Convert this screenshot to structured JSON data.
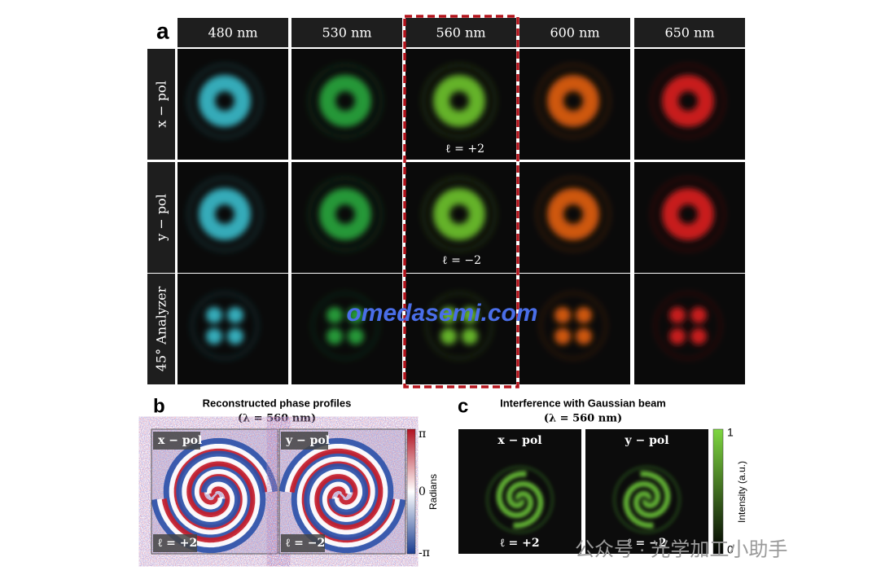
{
  "panel_a": {
    "label": "a",
    "columns": [
      "480 nm",
      "530 nm",
      "560 nm",
      "600 nm",
      "650 nm"
    ],
    "rows": [
      "x − pol",
      "y − pol",
      "45° Analyzer"
    ],
    "annotations": [
      "ℓ = +2",
      "ℓ = −2"
    ]
  },
  "watermark": "omedasemi.com",
  "panel_b": {
    "label": "b",
    "title": "Reconstructed phase profiles",
    "subtitle": "(λ = 560 nm)",
    "images": [
      {
        "label": "x − pol",
        "annotation": "ℓ = +2"
      },
      {
        "label": "y − pol",
        "annotation": "ℓ = −2"
      }
    ],
    "colorbar": {
      "ticks": [
        "π",
        "0",
        "-π"
      ],
      "label": "Radians"
    }
  },
  "panel_c": {
    "label": "c",
    "title": "Interference with Gaussian beam",
    "subtitle": "(λ = 560 nm)",
    "images": [
      {
        "label": "x − pol",
        "annotation": "ℓ = +2"
      },
      {
        "label": "y − pol",
        "annotation": "ℓ = −2"
      }
    ],
    "colorbar": {
      "ticks": [
        "1",
        "0"
      ],
      "label": "Intensity (a.u.)"
    }
  },
  "footer_watermark": "公众号 · 光学加工小助手"
}
